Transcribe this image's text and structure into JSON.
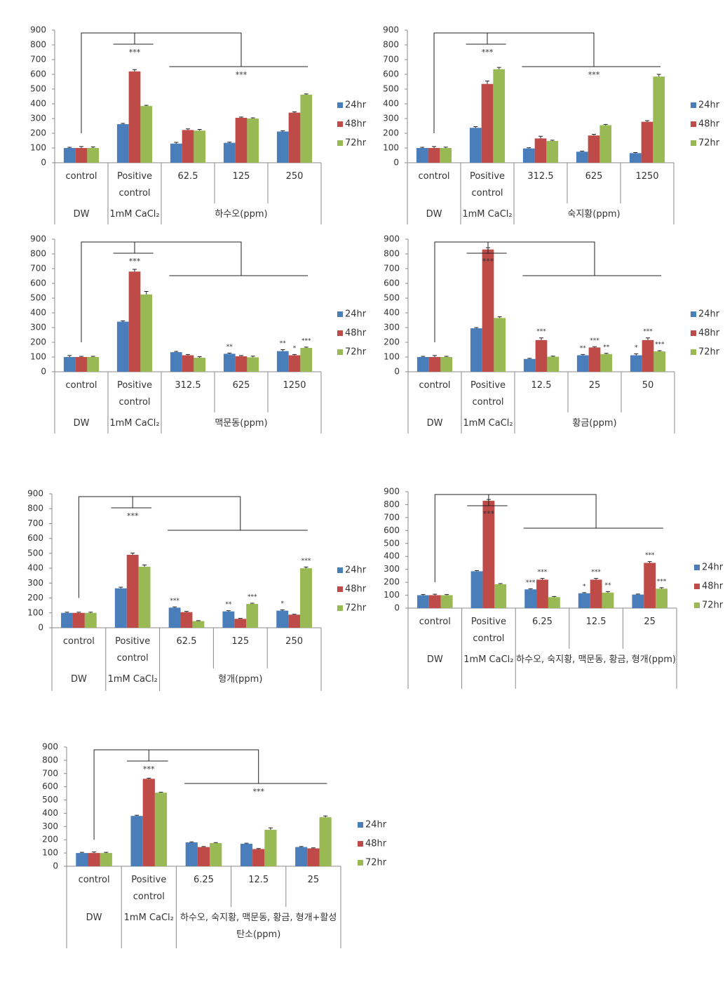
{
  "chart_data": [
    {
      "type": "bar",
      "categories": [
        "control",
        "Positive control",
        "62.5",
        "125",
        "250"
      ],
      "group_labels": [
        "DW",
        "1mM CaCl₂",
        "하수오(ppm)"
      ],
      "ylim": [
        0,
        900
      ],
      "yticks": [
        0,
        100,
        200,
        300,
        400,
        500,
        600,
        700,
        800,
        900
      ],
      "bracket_labels": [
        "***",
        "***"
      ],
      "series": [
        {
          "name": "24hr",
          "color": "#4a7ebb",
          "values": [
            100,
            262,
            130,
            135,
            212
          ],
          "errors": [
            5,
            5,
            8,
            5,
            5
          ],
          "significance": [
            null,
            null,
            null,
            null,
            null
          ]
        },
        {
          "name": "48hr",
          "color": "#be4b48",
          "values": [
            100,
            620,
            222,
            305,
            340
          ],
          "errors": [
            10,
            12,
            8,
            5,
            5
          ],
          "significance": [
            null,
            null,
            null,
            null,
            null
          ]
        },
        {
          "name": "72hr",
          "color": "#98b954",
          "values": [
            100,
            385,
            218,
            300,
            462
          ],
          "errors": [
            8,
            5,
            8,
            5,
            5
          ],
          "significance": [
            null,
            null,
            null,
            null,
            null
          ]
        }
      ]
    },
    {
      "type": "bar",
      "categories": [
        "control",
        "Positive control",
        "312.5",
        "625",
        "1250"
      ],
      "group_labels": [
        "DW",
        "1mM CaCl₂",
        "숙지황(ppm)"
      ],
      "ylim": [
        0,
        900
      ],
      "yticks": [
        0,
        100,
        200,
        300,
        400,
        500,
        600,
        700,
        800,
        900
      ],
      "bracket_labels": [
        "***",
        "***"
      ],
      "series": [
        {
          "name": "24hr",
          "color": "#4a7ebb",
          "values": [
            100,
            237,
            97,
            75,
            65
          ],
          "errors": [
            5,
            8,
            5,
            4,
            4
          ],
          "significance": [
            null,
            null,
            null,
            null,
            null
          ]
        },
        {
          "name": "48hr",
          "color": "#be4b48",
          "values": [
            100,
            535,
            165,
            185,
            278
          ],
          "errors": [
            10,
            20,
            15,
            8,
            8
          ],
          "significance": [
            null,
            null,
            null,
            null,
            null
          ]
        },
        {
          "name": "72hr",
          "color": "#98b954",
          "values": [
            100,
            635,
            148,
            255,
            585
          ],
          "errors": [
            6,
            12,
            5,
            5,
            15
          ],
          "significance": [
            null,
            null,
            null,
            null,
            null
          ]
        }
      ]
    },
    {
      "type": "bar",
      "categories": [
        "control",
        "Positive control",
        "312.5",
        "625",
        "1250"
      ],
      "group_labels": [
        "DW",
        "1mM CaCl₂",
        "맥문동(ppm)"
      ],
      "ylim": [
        0,
        900
      ],
      "yticks": [
        0,
        100,
        200,
        300,
        400,
        500,
        600,
        700,
        800,
        900
      ],
      "bracket_labels": [
        "***"
      ],
      "series": [
        {
          "name": "24hr",
          "color": "#4a7ebb",
          "values": [
            100,
            340,
            133,
            122,
            140
          ],
          "errors": [
            10,
            5,
            5,
            5,
            10
          ],
          "significance": [
            null,
            null,
            null,
            "**",
            "**"
          ]
        },
        {
          "name": "48hr",
          "color": "#be4b48",
          "values": [
            100,
            680,
            112,
            105,
            112
          ],
          "errors": [
            5,
            15,
            5,
            5,
            5
          ],
          "significance": [
            null,
            null,
            null,
            null,
            "*"
          ]
        },
        {
          "name": "72hr",
          "color": "#98b954",
          "values": [
            100,
            525,
            95,
            98,
            162
          ],
          "errors": [
            5,
            20,
            8,
            8,
            5
          ],
          "significance": [
            null,
            null,
            null,
            null,
            "***"
          ]
        }
      ]
    },
    {
      "type": "bar",
      "categories": [
        "control",
        "Positive control",
        "12.5",
        "25",
        "50"
      ],
      "group_labels": [
        "DW",
        "1mM CaCl₂",
        "황금(ppm)"
      ],
      "ylim": [
        0,
        900
      ],
      "yticks": [
        0,
        100,
        200,
        300,
        400,
        500,
        600,
        700,
        800,
        900
      ],
      "bracket_labels": [
        "***"
      ],
      "series": [
        {
          "name": "24hr",
          "color": "#4a7ebb",
          "values": [
            100,
            295,
            87,
            112,
            112
          ],
          "errors": [
            5,
            5,
            4,
            5,
            10
          ],
          "significance": [
            null,
            null,
            null,
            "**",
            "*"
          ]
        },
        {
          "name": "48hr",
          "color": "#be4b48",
          "values": [
            100,
            830,
            215,
            165,
            215
          ],
          "errors": [
            10,
            12,
            15,
            5,
            15
          ],
          "significance": [
            null,
            null,
            "***",
            "***",
            "***"
          ]
        },
        {
          "name": "72hr",
          "color": "#98b954",
          "values": [
            100,
            365,
            102,
            120,
            138
          ],
          "errors": [
            5,
            8,
            4,
            5,
            5
          ],
          "significance": [
            null,
            null,
            null,
            "**",
            "***"
          ]
        }
      ]
    },
    {
      "type": "bar",
      "categories": [
        "control",
        "Positive control",
        "62.5",
        "125",
        "250"
      ],
      "group_labels": [
        "DW",
        "1mM CaCl₂",
        "형개(ppm)"
      ],
      "ylim": [
        0,
        900
      ],
      "yticks": [
        0,
        100,
        200,
        300,
        400,
        500,
        600,
        700,
        800,
        900
      ],
      "bracket_labels": [
        "***"
      ],
      "series": [
        {
          "name": "24hr",
          "color": "#4a7ebb",
          "values": [
            100,
            265,
            135,
            110,
            115
          ],
          "errors": [
            5,
            8,
            5,
            5,
            5
          ],
          "significance": [
            null,
            null,
            "***",
            "**",
            "*"
          ]
        },
        {
          "name": "48hr",
          "color": "#be4b48",
          "values": [
            100,
            490,
            105,
            60,
            88
          ],
          "errors": [
            5,
            12,
            5,
            3,
            3
          ],
          "significance": [
            null,
            null,
            null,
            null,
            null
          ]
        },
        {
          "name": "72hr",
          "color": "#98b954",
          "values": [
            100,
            410,
            45,
            160,
            400
          ],
          "errors": [
            5,
            12,
            3,
            5,
            8
          ],
          "significance": [
            null,
            null,
            null,
            "***",
            "***"
          ]
        }
      ]
    },
    {
      "type": "bar",
      "categories": [
        "control",
        "Positive control",
        "6.25",
        "12.5",
        "25"
      ],
      "group_labels": [
        "DW",
        "1mM CaCl₂",
        "하수오, 숙지황, 맥문동, 황금, 형개(ppm)"
      ],
      "ylim": [
        0,
        900
      ],
      "yticks": [
        0,
        100,
        200,
        300,
        400,
        500,
        600,
        700,
        800,
        900
      ],
      "bracket_labels": [
        "***"
      ],
      "series": [
        {
          "name": "24hr",
          "color": "#4a7ebb",
          "values": [
            100,
            285,
            145,
            115,
            105
          ],
          "errors": [
            5,
            5,
            5,
            5,
            4
          ],
          "significance": [
            null,
            null,
            "***",
            "*",
            null
          ]
        },
        {
          "name": "48hr",
          "color": "#be4b48",
          "values": [
            100,
            830,
            220,
            220,
            350
          ],
          "errors": [
            8,
            10,
            10,
            10,
            10
          ],
          "significance": [
            null,
            null,
            "***",
            "***",
            "***"
          ]
        },
        {
          "name": "72hr",
          "color": "#98b954",
          "values": [
            100,
            185,
            85,
            120,
            150
          ],
          "errors": [
            5,
            5,
            5,
            8,
            8
          ],
          "significance": [
            null,
            null,
            null,
            "**",
            "***"
          ]
        }
      ]
    },
    {
      "type": "bar",
      "categories": [
        "control",
        "Positive control",
        "6.25",
        "12.5",
        "25"
      ],
      "group_labels": [
        "DW",
        "1mM CaCl₂",
        "하수오, 숙지황, 맥문동, 황금, 형개+활성탄소(ppm)"
      ],
      "ylim": [
        0,
        900
      ],
      "yticks": [
        0,
        100,
        200,
        300,
        400,
        500,
        600,
        700,
        800,
        900
      ],
      "bracket_labels": [
        "***",
        "***"
      ],
      "series": [
        {
          "name": "24hr",
          "color": "#4a7ebb",
          "values": [
            100,
            380,
            180,
            170,
            145
          ],
          "errors": [
            5,
            5,
            4,
            4,
            4
          ],
          "significance": [
            null,
            null,
            null,
            null,
            null
          ]
        },
        {
          "name": "48hr",
          "color": "#be4b48",
          "values": [
            100,
            660,
            145,
            130,
            135
          ],
          "errors": [
            8,
            5,
            4,
            4,
            4
          ],
          "significance": [
            null,
            null,
            null,
            null,
            null
          ]
        },
        {
          "name": "72hr",
          "color": "#98b954",
          "values": [
            100,
            555,
            175,
            275,
            370
          ],
          "errors": [
            5,
            4,
            4,
            15,
            10
          ],
          "significance": [
            null,
            null,
            null,
            null,
            null
          ]
        }
      ]
    }
  ]
}
